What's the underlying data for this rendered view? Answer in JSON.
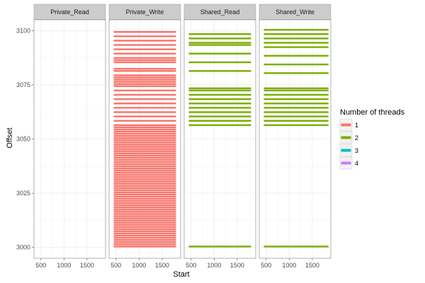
{
  "chart_data": {
    "type": "bar",
    "subtype": "faceted-horizontal-segments",
    "title": "",
    "xlabel": "Start",
    "ylabel": "Offset",
    "xlim": [
      350,
      1900
    ],
    "ylim": [
      2995,
      3105
    ],
    "x_ticks": [
      500,
      1000,
      1500
    ],
    "x_tick_labels": [
      "500",
      "1000",
      "1500"
    ],
    "y_ticks": [
      3000,
      3025,
      3050,
      3075,
      3100
    ],
    "y_tick_labels": [
      "3000",
      "3025",
      "3050",
      "3075",
      "3100"
    ],
    "grid": true,
    "legend": {
      "title": "Number of threads",
      "placement": "right",
      "entries": [
        {
          "label": "1",
          "color": "#F8766D"
        },
        {
          "label": "2",
          "color": "#7CAE00"
        },
        {
          "label": "3",
          "color": "#00BFC4"
        },
        {
          "label": "4",
          "color": "#C77CFF"
        }
      ]
    },
    "panels": [
      {
        "name": "Private_Read",
        "x_start": 450,
        "x_end": 1800,
        "series": []
      },
      {
        "name": "Private_Write",
        "x_start": 450,
        "x_end": 1800,
        "series": [
          {
            "threads": "1",
            "offsets": [
              3000,
              3001,
              3002,
              3003,
              3004,
              3005,
              3006,
              3007,
              3008,
              3009,
              3010,
              3011,
              3012,
              3013,
              3014,
              3015,
              3016,
              3017,
              3018,
              3019,
              3020,
              3021,
              3022,
              3023,
              3024,
              3025,
              3026,
              3027,
              3028,
              3029,
              3030,
              3031,
              3032,
              3033,
              3034,
              3035,
              3036,
              3037,
              3038,
              3039,
              3040,
              3041,
              3042,
              3043,
              3044,
              3045,
              3046,
              3047,
              3048,
              3049,
              3050,
              3051,
              3052,
              3053,
              3054,
              3055,
              3056,
              3058,
              3060,
              3062,
              3064,
              3066,
              3068,
              3070,
              3072,
              3074,
              3075,
              3076,
              3077,
              3078,
              3079,
              3081,
              3082,
              3085,
              3086,
              3087,
              3089,
              3091,
              3093,
              3095,
              3097,
              3099
            ]
          }
        ]
      },
      {
        "name": "Shared_Read",
        "x_start": 450,
        "x_end": 1800,
        "series": [
          {
            "threads": "2",
            "offsets": [
              3000,
              3056,
              3058,
              3060,
              3062,
              3064,
              3066,
              3068,
              3070,
              3072,
              3073,
              3081,
              3085,
              3089,
              3093,
              3094,
              3096,
              3098
            ]
          }
        ]
      },
      {
        "name": "Shared_Write",
        "x_start": 450,
        "x_end": 1850,
        "series": [
          {
            "threads": "2",
            "offsets": [
              3000,
              3056,
              3058,
              3060,
              3062,
              3064,
              3066,
              3068,
              3070,
              3072,
              3073,
              3080,
              3084,
              3088,
              3092,
              3094,
              3096,
              3098,
              3100
            ]
          }
        ]
      }
    ]
  }
}
